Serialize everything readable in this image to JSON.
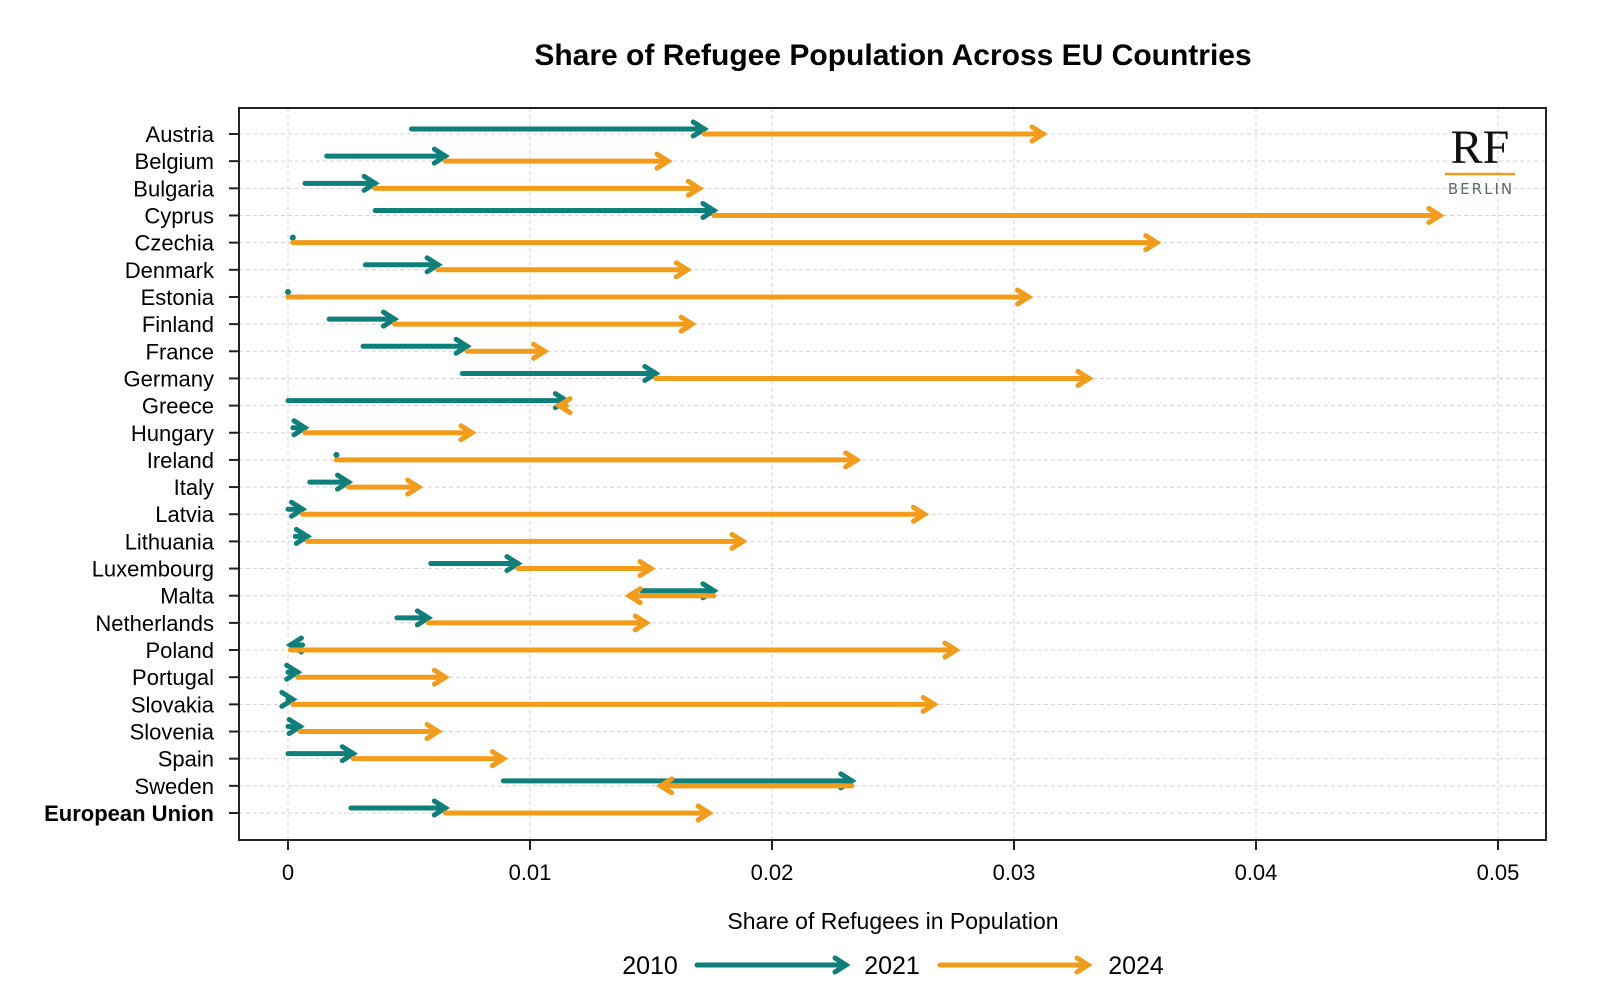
{
  "chart_data": {
    "type": "arrow",
    "title": "Share of Refugee Population Across EU Countries",
    "xlabel": "Share of Refugees in Population",
    "ylabel": "",
    "xlim": [
      0,
      0.05
    ],
    "xticks": [
      "0",
      "0.01",
      "0.02",
      "0.03",
      "0.04",
      "0.05"
    ],
    "xtick_values": [
      0,
      0.01,
      0.02,
      0.03,
      0.04,
      0.05
    ],
    "grid": true,
    "legend": {
      "placement": "bottom",
      "labels": [
        "2010",
        "2021",
        "2024"
      ],
      "segments": [
        {
          "from": "2010",
          "to": "2021",
          "color": "#0e7f7a"
        },
        {
          "from": "2021",
          "to": "2024",
          "color": "#f39c1a"
        }
      ]
    },
    "colors": {
      "2010_to_2021": "#0e7f7a",
      "2021_to_2024": "#f39c1a"
    },
    "countries": [
      {
        "name": "Austria",
        "y2010": 0.0051,
        "y2021": 0.0172,
        "y2024": 0.0312
      },
      {
        "name": "Belgium",
        "y2010": 0.0016,
        "y2021": 0.0065,
        "y2024": 0.0157
      },
      {
        "name": "Bulgaria",
        "y2010": 0.0007,
        "y2021": 0.0036,
        "y2024": 0.017
      },
      {
        "name": "Cyprus",
        "y2010": 0.0036,
        "y2021": 0.0176,
        "y2024": 0.0476
      },
      {
        "name": "Czechia",
        "y2010": 0.0002,
        "y2021": 0.0002,
        "y2024": 0.0359
      },
      {
        "name": "Denmark",
        "y2010": 0.0032,
        "y2021": 0.0062,
        "y2024": 0.0165
      },
      {
        "name": "Estonia",
        "y2010": 0.0,
        "y2021": 0.0,
        "y2024": 0.0306
      },
      {
        "name": "Finland",
        "y2010": 0.0017,
        "y2021": 0.0044,
        "y2024": 0.0167
      },
      {
        "name": "France",
        "y2010": 0.0031,
        "y2021": 0.0074,
        "y2024": 0.0106
      },
      {
        "name": "Germany",
        "y2010": 0.0072,
        "y2021": 0.0152,
        "y2024": 0.0331
      },
      {
        "name": "Greece",
        "y2010": 0.0,
        "y2021": 0.0115,
        "y2024": 0.0112
      },
      {
        "name": "Hungary",
        "y2010": 0.0002,
        "y2021": 0.0007,
        "y2024": 0.0076
      },
      {
        "name": "Ireland",
        "y2010": 0.002,
        "y2021": 0.002,
        "y2024": 0.0235
      },
      {
        "name": "Italy",
        "y2010": 0.0009,
        "y2021": 0.0025,
        "y2024": 0.0054
      },
      {
        "name": "Latvia",
        "y2010": 0.0,
        "y2021": 0.0006,
        "y2024": 0.0263
      },
      {
        "name": "Lithuania",
        "y2010": 0.0003,
        "y2021": 0.0008,
        "y2024": 0.0188
      },
      {
        "name": "Luxembourg",
        "y2010": 0.0059,
        "y2021": 0.0095,
        "y2024": 0.015
      },
      {
        "name": "Malta",
        "y2010": 0.0146,
        "y2021": 0.0176,
        "y2024": 0.0141
      },
      {
        "name": "Netherlands",
        "y2010": 0.0045,
        "y2021": 0.0058,
        "y2024": 0.0148
      },
      {
        "name": "Poland",
        "y2010": 0.0006,
        "y2021": 0.0001,
        "y2024": 0.0276
      },
      {
        "name": "Portugal",
        "y2010": 0.0,
        "y2021": 0.0004,
        "y2024": 0.0065
      },
      {
        "name": "Slovakia",
        "y2010": 0.0,
        "y2021": 0.0002,
        "y2024": 0.0267
      },
      {
        "name": "Slovenia",
        "y2010": 0.0,
        "y2021": 0.0005,
        "y2024": 0.0062
      },
      {
        "name": "Spain",
        "y2010": 0.0,
        "y2021": 0.0027,
        "y2024": 0.0089
      },
      {
        "name": "Sweden",
        "y2010": 0.0089,
        "y2021": 0.0233,
        "y2024": 0.0154
      },
      {
        "name": "European Union",
        "y2010": 0.0026,
        "y2021": 0.0065,
        "y2024": 0.0174,
        "bold": true
      }
    ]
  },
  "logo": {
    "main": "RF",
    "sub": "BERLIN",
    "accent_color": "#f39c1a"
  }
}
